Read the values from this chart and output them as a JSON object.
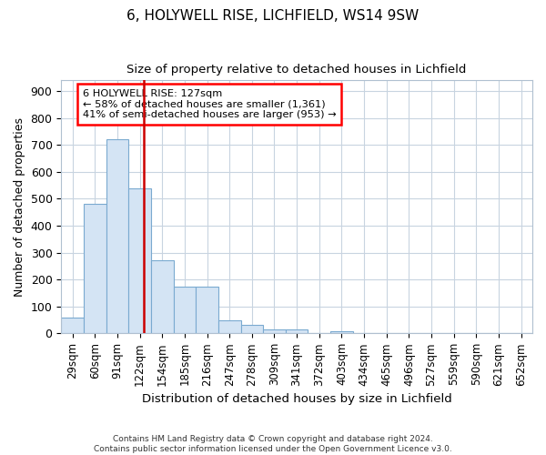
{
  "title1": "6, HOLYWELL RISE, LICHFIELD, WS14 9SW",
  "title2": "Size of property relative to detached houses in Lichfield",
  "xlabel": "Distribution of detached houses by size in Lichfield",
  "ylabel": "Number of detached properties",
  "categories": [
    "29sqm",
    "60sqm",
    "91sqm",
    "122sqm",
    "154sqm",
    "185sqm",
    "216sqm",
    "247sqm",
    "278sqm",
    "309sqm",
    "341sqm",
    "372sqm",
    "403sqm",
    "434sqm",
    "465sqm",
    "496sqm",
    "527sqm",
    "559sqm",
    "590sqm",
    "621sqm",
    "652sqm"
  ],
  "values": [
    58,
    480,
    720,
    540,
    270,
    172,
    172,
    47,
    33,
    15,
    15,
    0,
    9,
    0,
    0,
    0,
    0,
    0,
    0,
    0,
    0
  ],
  "bar_color": "#d4e4f4",
  "bar_edge_color": "#7aaad0",
  "annotation_text": "6 HOLYWELL RISE: 127sqm\n← 58% of detached houses are smaller (1,361)\n41% of semi-detached houses are larger (953) →",
  "annotation_box_color": "white",
  "annotation_box_edge_color": "red",
  "vline_color": "#cc0000",
  "ylim": [
    0,
    940
  ],
  "yticks": [
    0,
    100,
    200,
    300,
    400,
    500,
    600,
    700,
    800,
    900
  ],
  "footer": "Contains HM Land Registry data © Crown copyright and database right 2024.\nContains public sector information licensed under the Open Government Licence v3.0.",
  "bg_color": "#ffffff",
  "grid_color": "#c8d4e0"
}
